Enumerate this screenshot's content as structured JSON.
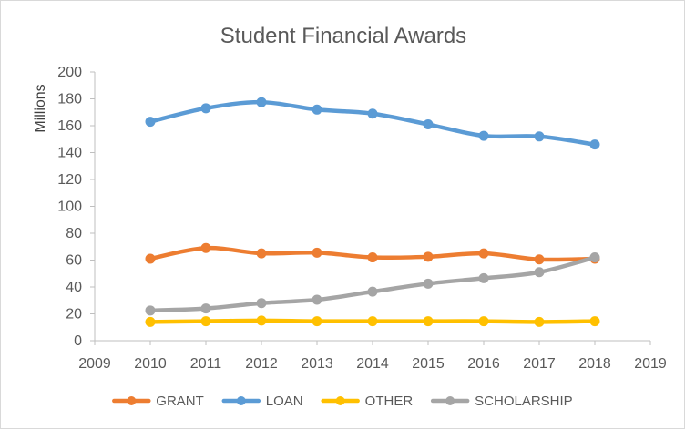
{
  "chart_data": {
    "type": "line",
    "title": "Student Financial Awards",
    "xlabel": "",
    "ylabel": "Millions",
    "xlim": [
      2009,
      2019
    ],
    "ylim": [
      0,
      200
    ],
    "x_ticks": [
      2009,
      2010,
      2011,
      2012,
      2013,
      2014,
      2015,
      2016,
      2017,
      2018,
      2019
    ],
    "y_ticks": [
      0,
      20,
      40,
      60,
      80,
      100,
      120,
      140,
      160,
      180,
      200
    ],
    "grid": false,
    "legend_position": "bottom",
    "x": [
      2010,
      2011,
      2012,
      2013,
      2014,
      2015,
      2016,
      2017,
      2018
    ],
    "series": [
      {
        "name": "GRANT",
        "color": "#ed7d31",
        "values": [
          61,
          69,
          65,
          65.5,
          62,
          62.5,
          65,
          60.5,
          61
        ]
      },
      {
        "name": "LOAN",
        "color": "#5b9bd5",
        "values": [
          163,
          173,
          177.5,
          172,
          169,
          161,
          152.5,
          152,
          146
        ]
      },
      {
        "name": "OTHER",
        "color": "#ffc000",
        "values": [
          14,
          14.5,
          15,
          14.5,
          14.5,
          14.5,
          14.5,
          14,
          14.5
        ]
      },
      {
        "name": "SCHOLARSHIP",
        "color": "#a5a5a5",
        "values": [
          22.5,
          24,
          28,
          30.5,
          36.5,
          42.5,
          46.5,
          51,
          62
        ]
      }
    ]
  }
}
